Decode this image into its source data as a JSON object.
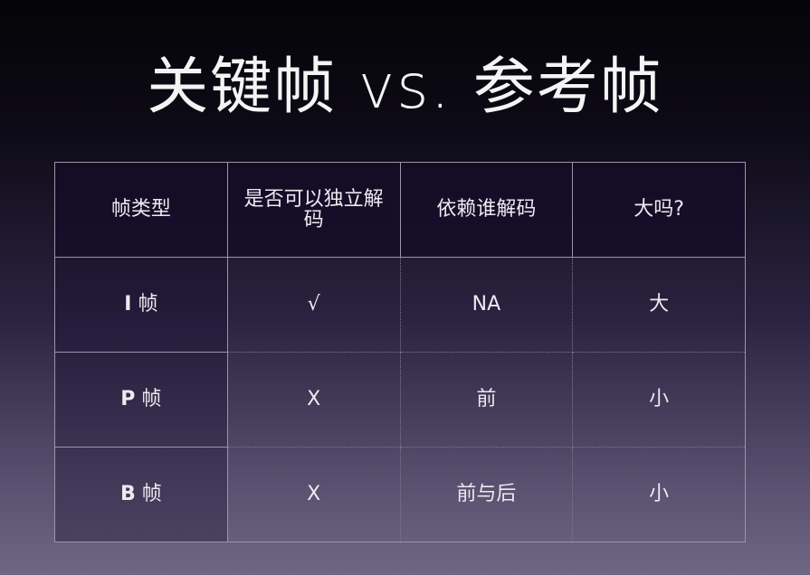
{
  "title": "关键帧 vs. 参考帧",
  "table": {
    "headers": [
      "帧类型",
      "是否可以独立解码",
      "依赖谁解码",
      "大吗?"
    ],
    "rows": [
      {
        "type_letter": "I",
        "type_suffix": "帧",
        "independent": "√",
        "depends_on": "NA",
        "large": "大"
      },
      {
        "type_letter": "P",
        "type_suffix": "帧",
        "independent": "X",
        "depends_on": "前",
        "large": "小"
      },
      {
        "type_letter": "B",
        "type_suffix": "帧",
        "independent": "X",
        "depends_on": "前与后",
        "large": "小"
      }
    ]
  }
}
